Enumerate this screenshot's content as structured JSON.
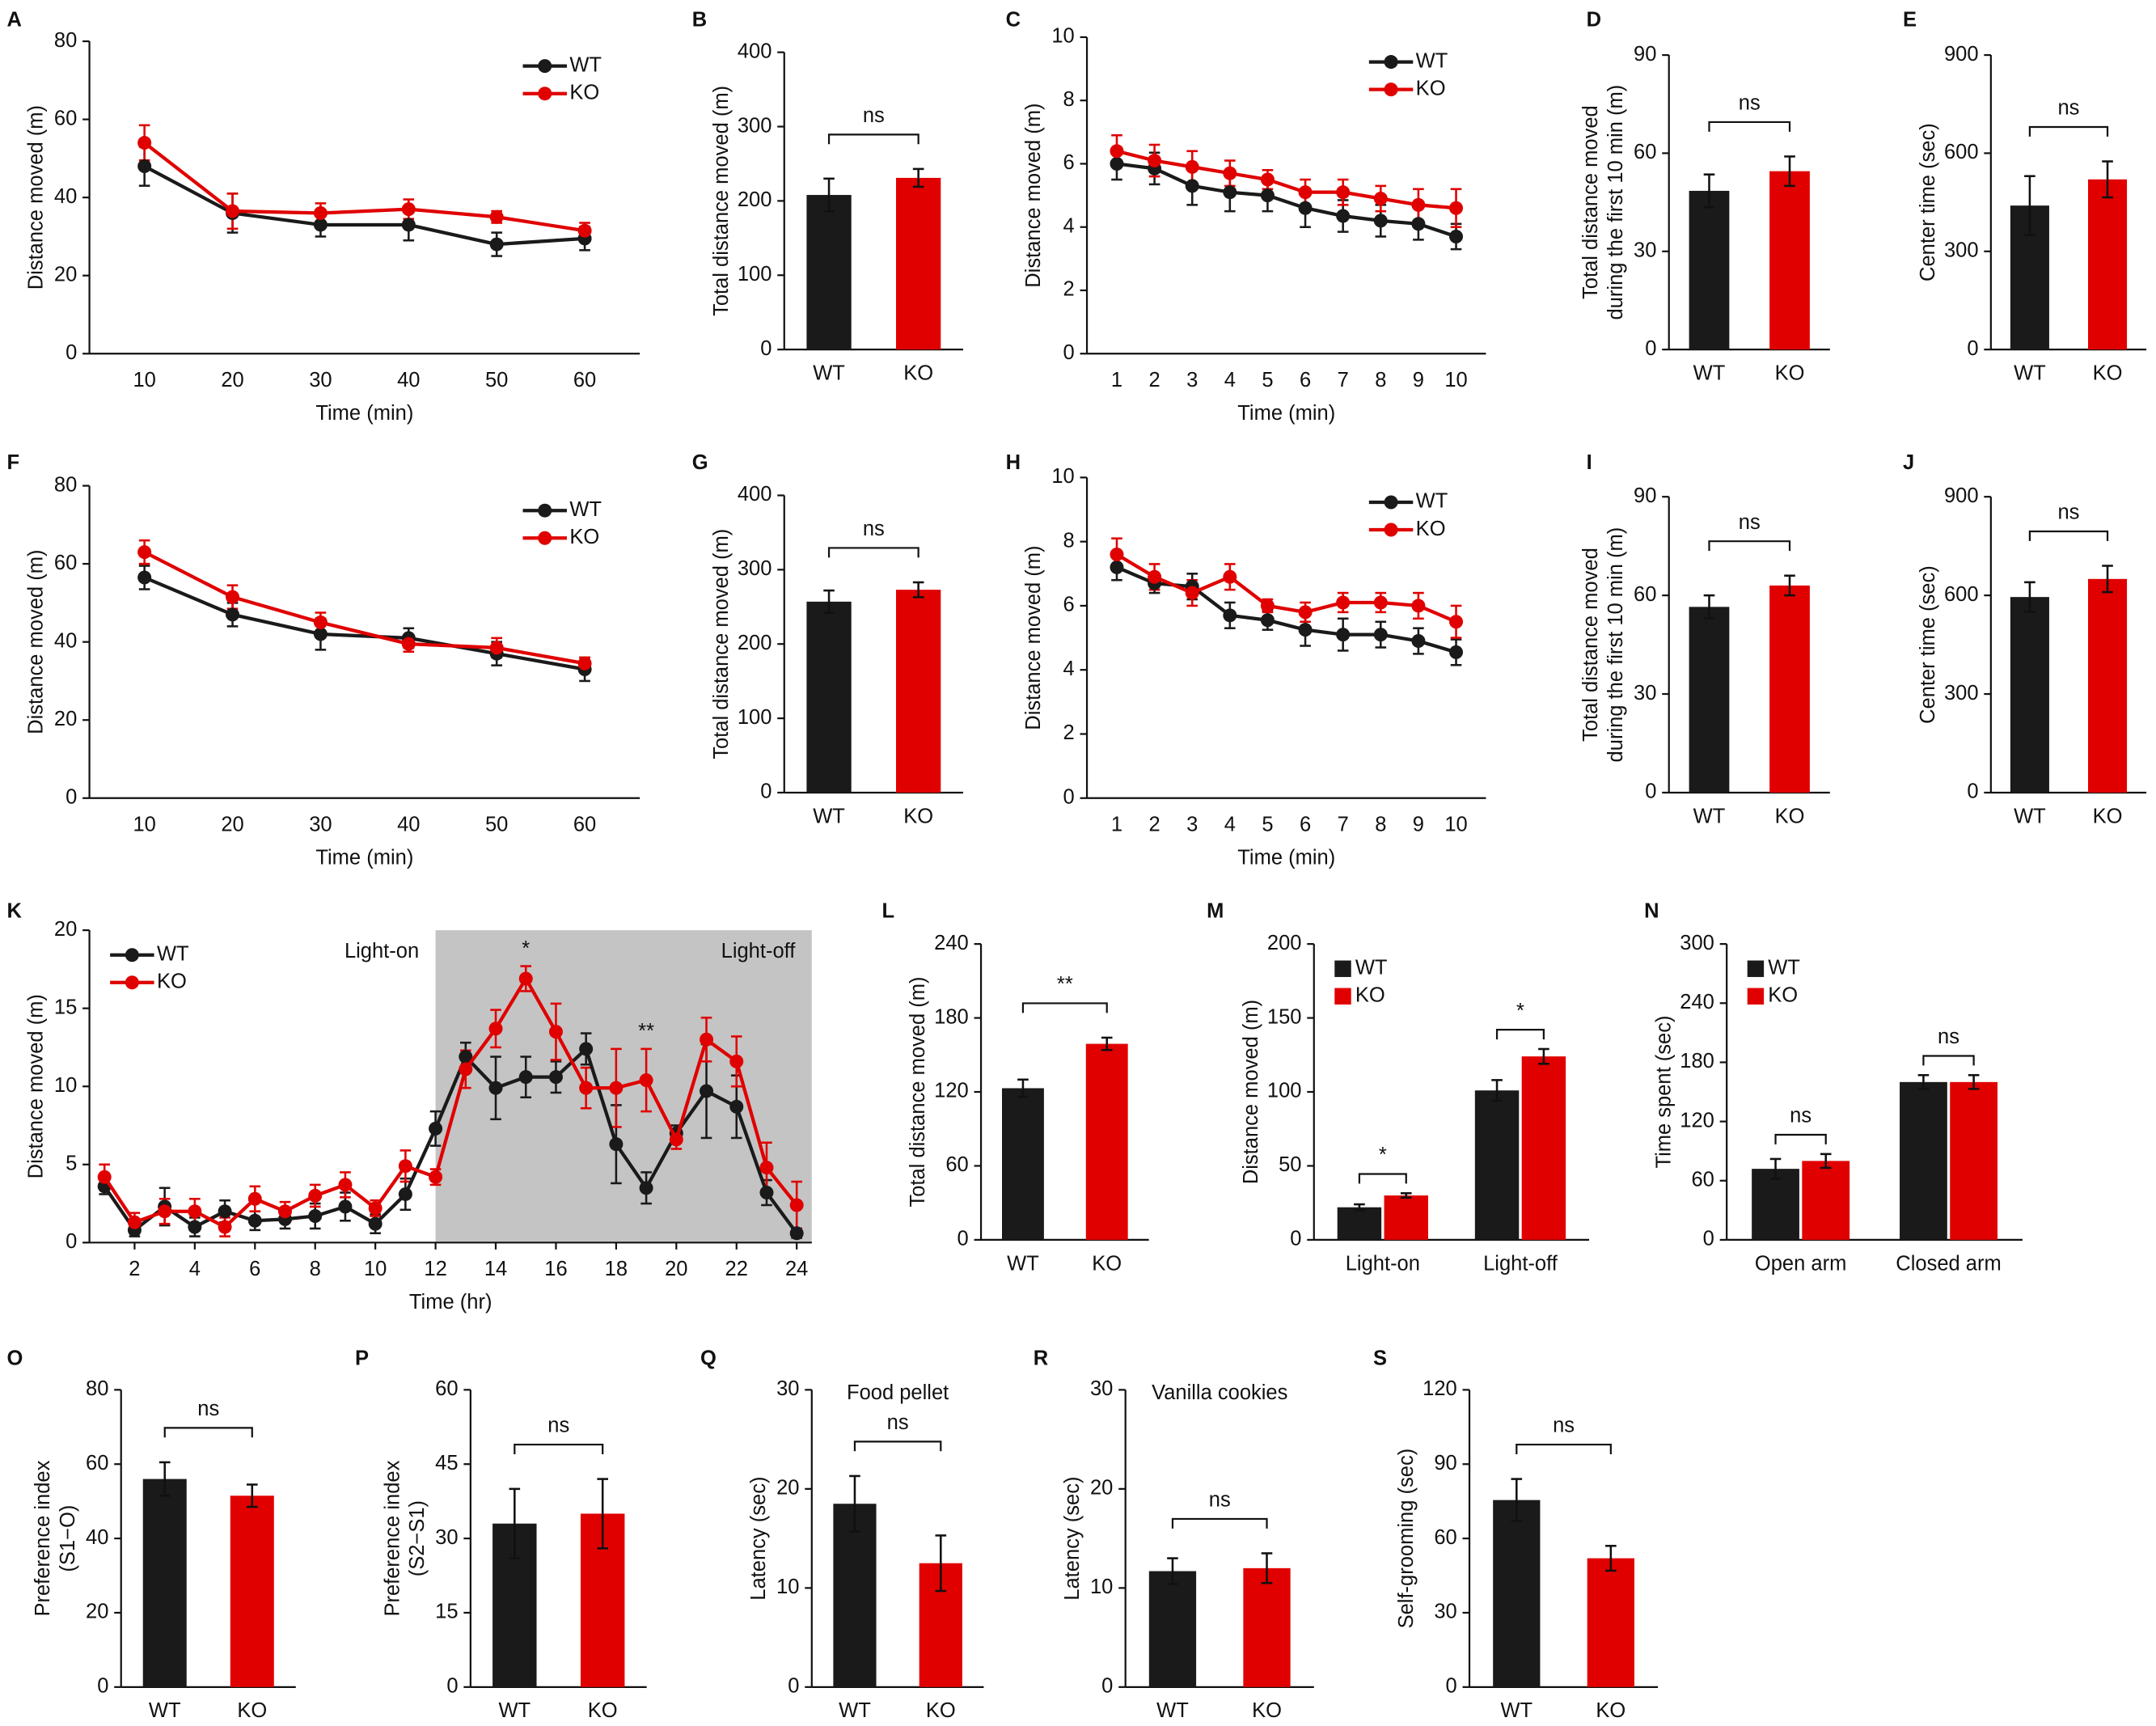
{
  "chart_data": [
    {
      "type": "line",
      "panel": "A",
      "categories": [
        10,
        20,
        30,
        40,
        50,
        60
      ],
      "xlabel": "Time (min)",
      "ylabel": "Distance moved (m)",
      "ylim": [
        0,
        80
      ],
      "yticks": [
        0,
        20,
        40,
        60,
        80
      ],
      "legend": "upper right",
      "series": [
        {
          "name": "WT",
          "color": "#1a1a1a",
          "values": [
            48,
            36,
            33,
            33,
            28,
            29.5
          ],
          "errors": [
            5,
            5,
            3,
            4,
            3,
            3
          ]
        },
        {
          "name": "KO",
          "color": "#e00000",
          "values": [
            54,
            36.5,
            36,
            37,
            35,
            31.5
          ],
          "errors": [
            4.5,
            4.5,
            2.5,
            2.5,
            1.5,
            2
          ]
        }
      ]
    },
    {
      "type": "bar",
      "panel": "B",
      "categories": [
        "WT",
        "KO"
      ],
      "values": [
        208,
        231
      ],
      "errors": [
        22,
        12
      ],
      "colors": [
        "#1a1a1a",
        "#e00000"
      ],
      "ylabel": "Total distance moved (m)",
      "ylim": [
        0,
        400
      ],
      "yticks": [
        0,
        100,
        200,
        300,
        400
      ],
      "annotation": "ns"
    },
    {
      "type": "line",
      "panel": "C",
      "categories": [
        1,
        2,
        3,
        4,
        5,
        6,
        7,
        8,
        9,
        10
      ],
      "xlabel": "Time (min)",
      "ylabel": "Distance moved (m)",
      "ylim": [
        0,
        10
      ],
      "yticks": [
        0,
        2,
        4,
        6,
        8,
        10
      ],
      "legend": "upper right",
      "series": [
        {
          "name": "WT",
          "color": "#1a1a1a",
          "values": [
            6.0,
            5.85,
            5.3,
            5.1,
            5.0,
            4.6,
            4.35,
            4.2,
            4.1,
            3.7
          ],
          "errors": [
            0.5,
            0.5,
            0.6,
            0.6,
            0.5,
            0.6,
            0.5,
            0.5,
            0.5,
            0.4
          ]
        },
        {
          "name": "KO",
          "color": "#e00000",
          "values": [
            6.4,
            6.1,
            5.9,
            5.7,
            5.5,
            5.1,
            5.1,
            4.9,
            4.7,
            4.6
          ],
          "errors": [
            0.5,
            0.5,
            0.5,
            0.4,
            0.3,
            0.4,
            0.4,
            0.4,
            0.5,
            0.6
          ]
        }
      ]
    },
    {
      "type": "bar",
      "panel": "D",
      "categories": [
        "WT",
        "KO"
      ],
      "values": [
        48.5,
        54.5
      ],
      "errors": [
        5,
        4.5
      ],
      "colors": [
        "#1a1a1a",
        "#e00000"
      ],
      "ylabel": [
        "Total distance moved",
        "during the first 10 min (m)"
      ],
      "ylim": [
        0,
        90
      ],
      "yticks": [
        0,
        30,
        60,
        90
      ],
      "annotation": "ns"
    },
    {
      "type": "bar",
      "panel": "E",
      "categories": [
        "WT",
        "KO"
      ],
      "values": [
        440,
        520
      ],
      "errors": [
        90,
        55
      ],
      "colors": [
        "#1a1a1a",
        "#e00000"
      ],
      "ylabel": "Center time (sec)",
      "ylim": [
        0,
        900
      ],
      "yticks": [
        0,
        300,
        600,
        900
      ],
      "annotation": "ns"
    },
    {
      "type": "line",
      "panel": "F",
      "categories": [
        10,
        20,
        30,
        40,
        50,
        60
      ],
      "xlabel": "Time (min)",
      "ylabel": "Distance moved (m)",
      "ylim": [
        0,
        80
      ],
      "yticks": [
        0,
        20,
        40,
        60,
        80
      ],
      "legend": "upper right",
      "series": [
        {
          "name": "WT",
          "color": "#1a1a1a",
          "values": [
            56.5,
            47,
            42,
            41,
            37,
            33
          ],
          "errors": [
            3,
            3,
            4,
            2.5,
            3,
            3
          ]
        },
        {
          "name": "KO",
          "color": "#e00000",
          "values": [
            63,
            51.5,
            45,
            39.5,
            38.5,
            34.5
          ],
          "errors": [
            3,
            3,
            2.5,
            2,
            2.5,
            1.5
          ]
        }
      ]
    },
    {
      "type": "bar",
      "panel": "G",
      "categories": [
        "WT",
        "KO"
      ],
      "values": [
        257,
        273
      ],
      "errors": [
        15,
        10
      ],
      "colors": [
        "#1a1a1a",
        "#e00000"
      ],
      "ylabel": "Total distance moved (m)",
      "ylim": [
        0,
        400
      ],
      "yticks": [
        0,
        100,
        200,
        300,
        400
      ],
      "annotation": "ns"
    },
    {
      "type": "line",
      "panel": "H",
      "categories": [
        1,
        2,
        3,
        4,
        5,
        6,
        7,
        8,
        9,
        10
      ],
      "xlabel": "Time (min)",
      "ylabel": "Distance moved (m)",
      "ylim": [
        0,
        10
      ],
      "yticks": [
        0,
        2,
        4,
        6,
        8,
        10
      ],
      "legend": "upper right",
      "series": [
        {
          "name": "WT",
          "color": "#1a1a1a",
          "values": [
            7.2,
            6.7,
            6.6,
            5.7,
            5.55,
            5.25,
            5.1,
            5.1,
            4.9,
            4.55
          ],
          "errors": [
            0.4,
            0.3,
            0.4,
            0.4,
            0.3,
            0.5,
            0.5,
            0.4,
            0.4,
            0.4
          ]
        },
        {
          "name": "KO",
          "color": "#e00000",
          "values": [
            7.6,
            6.9,
            6.4,
            6.9,
            6.0,
            5.8,
            6.1,
            6.1,
            6.0,
            5.5
          ],
          "errors": [
            0.5,
            0.4,
            0.4,
            0.4,
            0.2,
            0.3,
            0.3,
            0.3,
            0.4,
            0.5
          ]
        }
      ]
    },
    {
      "type": "bar",
      "panel": "I",
      "categories": [
        "WT",
        "KO"
      ],
      "values": [
        56.5,
        63
      ],
      "errors": [
        3.5,
        3
      ],
      "colors": [
        "#1a1a1a",
        "#e00000"
      ],
      "ylabel": [
        "Total distance moved",
        "during the first 10 min (m)"
      ],
      "ylim": [
        0,
        90
      ],
      "yticks": [
        0,
        30,
        60,
        90
      ],
      "annotation": "ns"
    },
    {
      "type": "bar",
      "panel": "J",
      "categories": [
        "WT",
        "KO"
      ],
      "values": [
        595,
        650
      ],
      "errors": [
        45,
        40
      ],
      "colors": [
        "#1a1a1a",
        "#e00000"
      ],
      "ylabel": "Center time (sec)",
      "ylim": [
        0,
        900
      ],
      "yticks": [
        0,
        300,
        600,
        900
      ],
      "annotation": "ns"
    },
    {
      "type": "line",
      "panel": "K",
      "x": [
        1,
        2,
        3,
        4,
        5,
        6,
        7,
        8,
        9,
        10,
        11,
        12,
        13,
        14,
        15,
        16,
        17,
        18,
        19,
        20,
        21,
        22,
        23,
        24
      ],
      "xlim": [
        0.5,
        24.5
      ],
      "xticks": [
        2,
        4,
        6,
        8,
        10,
        12,
        14,
        16,
        18,
        20,
        22,
        24
      ],
      "xlabel": "Time (hr)",
      "ylabel": "Distance moved (m)",
      "ylim": [
        0,
        20
      ],
      "yticks": [
        0,
        5,
        10,
        15,
        20
      ],
      "legend": "upper left",
      "shade_start": 12,
      "region_labels": [
        "Light-on",
        "Light-off"
      ],
      "annotations": [
        {
          "x": 15,
          "text": "*"
        },
        {
          "x": 19,
          "text": "**"
        }
      ],
      "series": [
        {
          "name": "WT",
          "color": "#1a1a1a",
          "values": [
            3.6,
            0.8,
            2.3,
            1.0,
            2.0,
            1.4,
            1.5,
            1.7,
            2.3,
            1.2,
            3.1,
            7.3,
            11.9,
            9.9,
            10.6,
            10.6,
            12.4,
            6.3,
            3.5,
            7.0,
            9.7,
            8.7,
            3.2,
            0.6
          ],
          "errors": [
            0.5,
            0.4,
            1.2,
            0.6,
            0.7,
            0.6,
            0.6,
            0.8,
            0.9,
            0.6,
            1.0,
            1.1,
            0.9,
            2.0,
            1.3,
            1.0,
            1.0,
            2.5,
            1.0,
            0.5,
            3.0,
            2.0,
            0.8,
            0.3
          ]
        },
        {
          "name": "KO",
          "color": "#e00000",
          "values": [
            4.2,
            1.3,
            2.0,
            2.0,
            1.0,
            2.8,
            2.0,
            3.0,
            3.7,
            2.2,
            4.9,
            4.2,
            11.1,
            13.7,
            16.9,
            13.5,
            9.9,
            9.9,
            10.4,
            6.6,
            13.0,
            11.6,
            4.8,
            2.4
          ],
          "errors": [
            0.8,
            0.6,
            0.8,
            0.8,
            0.6,
            0.8,
            0.6,
            0.7,
            0.8,
            0.5,
            1.0,
            0.5,
            1.2,
            1.2,
            0.8,
            1.8,
            1.3,
            2.5,
            2.0,
            0.6,
            1.4,
            1.6,
            1.6,
            1.5
          ]
        }
      ]
    },
    {
      "type": "bar",
      "panel": "L",
      "categories": [
        "WT",
        "KO"
      ],
      "values": [
        123,
        159
      ],
      "errors": [
        7,
        5
      ],
      "colors": [
        "#1a1a1a",
        "#e00000"
      ],
      "ylabel": "Total distance moved (m)",
      "ylim": [
        0,
        240
      ],
      "yticks": [
        0,
        60,
        120,
        180,
        240
      ],
      "annotation": "**"
    },
    {
      "type": "bar",
      "panel": "M",
      "categories": [
        "Light-on",
        "Light-off"
      ],
      "ylabel": "Distance moved (m)",
      "ylim": [
        0,
        200
      ],
      "yticks": [
        0,
        50,
        100,
        150,
        200
      ],
      "legend": "upper left",
      "annotations": [
        "*",
        "*"
      ],
      "series": [
        {
          "name": "WT",
          "color": "#1a1a1a",
          "values": [
            22,
            101
          ],
          "errors": [
            2,
            7
          ]
        },
        {
          "name": "KO",
          "color": "#e00000",
          "values": [
            30,
            124
          ],
          "errors": [
            1.5,
            5
          ]
        }
      ]
    },
    {
      "type": "bar",
      "panel": "N",
      "categories": [
        "Open arm",
        "Closed arm"
      ],
      "ylabel": "Time spent (sec)",
      "ylim": [
        0,
        300
      ],
      "yticks": [
        0,
        60,
        120,
        180,
        240,
        300
      ],
      "legend": "upper left",
      "annotations": [
        "ns",
        "ns"
      ],
      "series": [
        {
          "name": "WT",
          "color": "#1a1a1a",
          "values": [
            72,
            160
          ],
          "errors": [
            10,
            7
          ]
        },
        {
          "name": "KO",
          "color": "#e00000",
          "values": [
            80,
            160
          ],
          "errors": [
            7,
            7
          ]
        }
      ]
    },
    {
      "type": "bar",
      "panel": "O",
      "categories": [
        "WT",
        "KO"
      ],
      "values": [
        56,
        51.5
      ],
      "errors": [
        4.5,
        3
      ],
      "colors": [
        "#1a1a1a",
        "#e00000"
      ],
      "ylabel": [
        "Preference index",
        "(S1−O)"
      ],
      "ylim": [
        0,
        80
      ],
      "yticks": [
        0,
        20,
        40,
        60,
        80
      ],
      "annotation": "ns"
    },
    {
      "type": "bar",
      "panel": "P",
      "categories": [
        "WT",
        "KO"
      ],
      "values": [
        33,
        35
      ],
      "errors": [
        7,
        7
      ],
      "colors": [
        "#1a1a1a",
        "#e00000"
      ],
      "ylabel": [
        "Preference index",
        "(S2−S1)"
      ],
      "ylim": [
        0,
        60
      ],
      "yticks": [
        0,
        15,
        30,
        45,
        60
      ],
      "annotation": "ns"
    },
    {
      "type": "bar",
      "panel": "Q",
      "title": "Food pellet",
      "categories": [
        "WT",
        "KO"
      ],
      "values": [
        18.5,
        12.5
      ],
      "errors": [
        2.8,
        2.8
      ],
      "colors": [
        "#1a1a1a",
        "#e00000"
      ],
      "ylabel": "Latency (sec)",
      "ylim": [
        0,
        30
      ],
      "yticks": [
        0,
        10,
        20,
        30
      ],
      "annotation": "ns"
    },
    {
      "type": "bar",
      "panel": "R",
      "title": "Vanilla cookies",
      "categories": [
        "WT",
        "KO"
      ],
      "values": [
        11.7,
        12
      ],
      "errors": [
        1.3,
        1.5
      ],
      "colors": [
        "#1a1a1a",
        "#e00000"
      ],
      "ylabel": "Latency (sec)",
      "ylim": [
        0,
        30
      ],
      "yticks": [
        0,
        10,
        20,
        30
      ],
      "annotation": "ns"
    },
    {
      "type": "bar",
      "panel": "S",
      "categories": [
        "WT",
        "KO"
      ],
      "values": [
        75.5,
        52
      ],
      "errors": [
        8.5,
        5
      ],
      "colors": [
        "#1a1a1a",
        "#e00000"
      ],
      "ylabel": "Self-grooming (sec)",
      "ylim": [
        0,
        120
      ],
      "yticks": [
        0,
        30,
        60,
        90,
        120
      ],
      "annotation": "ns"
    }
  ]
}
